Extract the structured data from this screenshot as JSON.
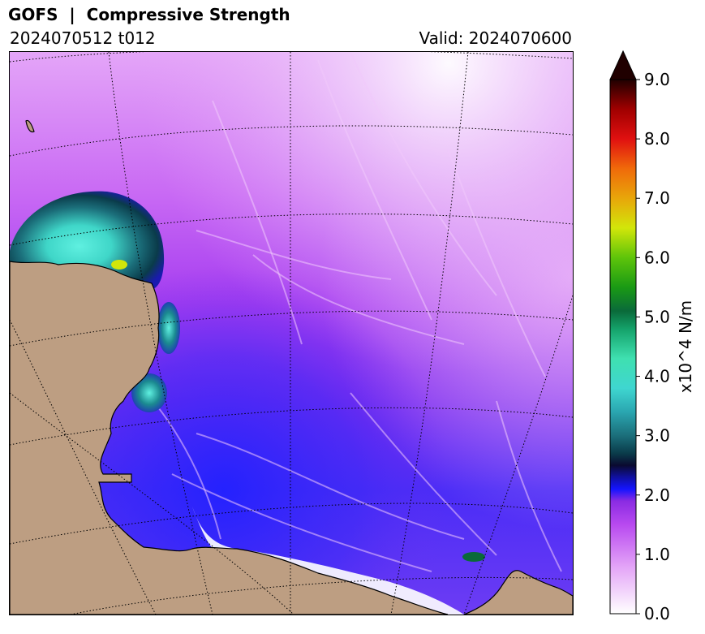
{
  "header": {
    "title": "GOFS  |  Compressive Strength",
    "run_label": "2024070512 t012",
    "valid_label": "Valid: 2024070600"
  },
  "map": {
    "land_color": "#bd9e82",
    "coastline_color": "#000000",
    "graticule_color": "#000000",
    "graticule_style": "dotted"
  },
  "colorbar": {
    "label": "x10^4 N/m",
    "ticks": [
      "0.0",
      "1.0",
      "2.0",
      "3.0",
      "4.0",
      "5.0",
      "6.0",
      "7.0",
      "8.0",
      "9.0"
    ],
    "min": 0.0,
    "max": 9.0,
    "extend": "max",
    "colors": [
      {
        "value": 0.0,
        "color": "#ffffff"
      },
      {
        "value": 0.8,
        "color": "#e3a3f7"
      },
      {
        "value": 1.5,
        "color": "#b84af0"
      },
      {
        "value": 1.9,
        "color": "#8a2be2"
      },
      {
        "value": 2.1,
        "color": "#1414ff"
      },
      {
        "value": 2.3,
        "color": "#1010a0"
      },
      {
        "value": 2.5,
        "color": "#0a0a30"
      },
      {
        "value": 2.7,
        "color": "#0a3b4a"
      },
      {
        "value": 3.0,
        "color": "#1b6e7a"
      },
      {
        "value": 3.4,
        "color": "#2aa6b0"
      },
      {
        "value": 3.8,
        "color": "#3fd6d0"
      },
      {
        "value": 4.3,
        "color": "#3fe0b0"
      },
      {
        "value": 4.8,
        "color": "#14a26a"
      },
      {
        "value": 5.1,
        "color": "#0a6a3a"
      },
      {
        "value": 5.5,
        "color": "#1a9a14"
      },
      {
        "value": 6.0,
        "color": "#5ec40a"
      },
      {
        "value": 6.5,
        "color": "#d2e60a"
      },
      {
        "value": 7.0,
        "color": "#e8a60a"
      },
      {
        "value": 7.5,
        "color": "#f06a0a"
      },
      {
        "value": 8.0,
        "color": "#e01010"
      },
      {
        "value": 8.5,
        "color": "#a00000"
      },
      {
        "value": 9.0,
        "color": "#200000"
      }
    ]
  }
}
